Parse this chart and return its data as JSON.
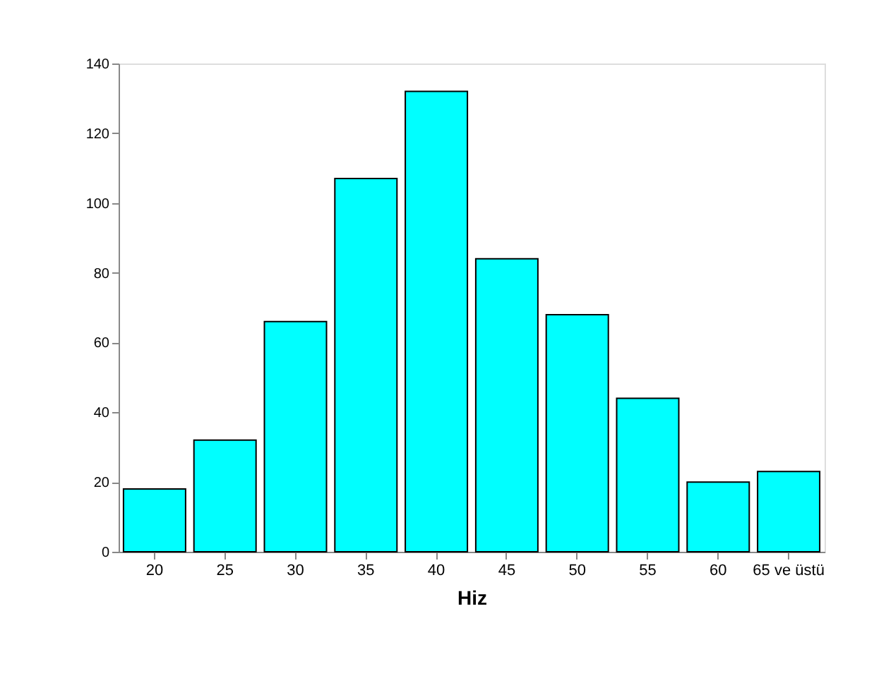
{
  "chart_data": {
    "type": "bar",
    "xlabel": "Hiz",
    "categories": [
      "20",
      "25",
      "30",
      "35",
      "40",
      "45",
      "50",
      "55",
      "60",
      "65 ve üstü"
    ],
    "values": [
      18,
      32,
      66,
      107,
      132,
      84,
      68,
      44,
      20,
      23
    ],
    "color": "#00ffff",
    "ylim": [
      0,
      140
    ],
    "yticks": [
      0,
      20,
      40,
      60,
      80,
      100,
      120,
      140
    ],
    "grid": false
  }
}
